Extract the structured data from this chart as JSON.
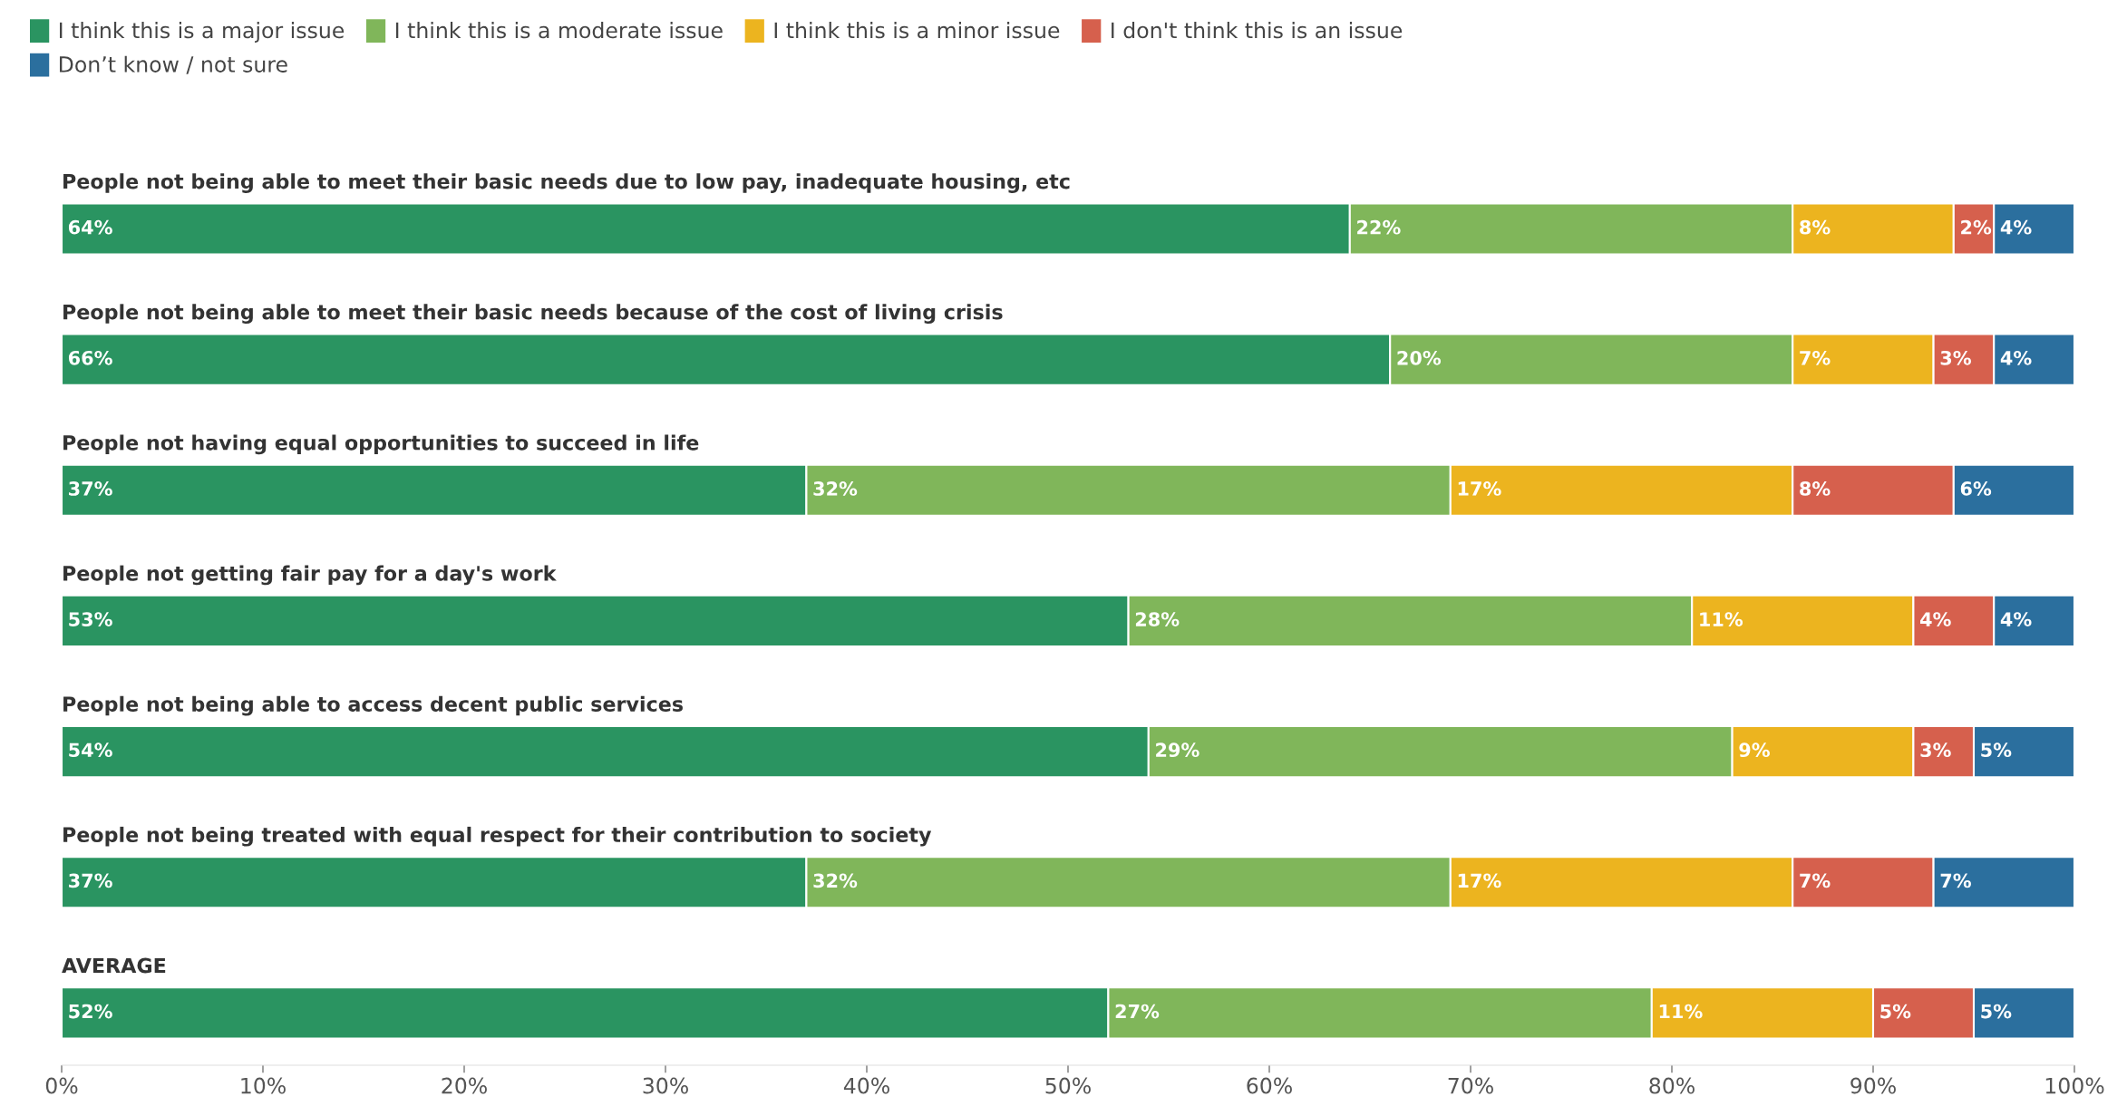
{
  "chart_data": {
    "type": "bar",
    "orientation": "horizontal",
    "stacked": true,
    "legend": "top left",
    "grid": false,
    "categories": [
      "People not being able to meet their basic needs due to low pay, inadequate housing, etc",
      "People not being able to meet their basic needs because of the cost of living crisis",
      "People not having equal opportunities to succeed in life",
      "People not getting fair pay for a day's work",
      "People not being able to access decent public services",
      "People not being treated with equal respect for their contribution to society",
      "AVERAGE"
    ],
    "series": [
      {
        "name": "I think this is a major issue",
        "color": "#2a9461",
        "values": [
          64,
          66,
          37,
          53,
          54,
          37,
          52
        ],
        "value_labels": [
          "64%",
          "66%",
          "37%",
          "53%",
          "54%",
          "37%",
          "52%"
        ]
      },
      {
        "name": "I think this is a moderate issue",
        "color": "#80b65a",
        "values": [
          22,
          20,
          32,
          28,
          29,
          32,
          27
        ],
        "value_labels": [
          "22%",
          "20%",
          "32%",
          "28%",
          "29%",
          "32%",
          "27%"
        ]
      },
      {
        "name": "I think this is a minor issue",
        "color": "#ecb41f",
        "values": [
          8,
          7,
          17,
          11,
          9,
          17,
          11
        ],
        "value_labels": [
          "8%",
          "7%",
          "17%",
          "11%",
          "9%",
          "17%",
          "11%"
        ]
      },
      {
        "name": "I don't think this is an issue",
        "color": "#d6604d",
        "values": [
          2,
          3,
          8,
          4,
          3,
          7,
          5
        ],
        "value_labels": [
          "2%",
          "3%",
          "8%",
          "4%",
          "3%",
          "7%",
          "5%"
        ]
      },
      {
        "name": "Don’t know / not sure",
        "color": "#2b6f9e",
        "values": [
          4,
          4,
          6,
          4,
          5,
          7,
          5
        ],
        "value_labels": [
          "4%",
          "4%",
          "6%",
          "4%",
          "5%",
          "7%",
          "5%"
        ]
      }
    ],
    "xlim": [
      0,
      100
    ],
    "xticks": [
      {
        "value": 0,
        "label": "0%"
      },
      {
        "value": 10,
        "label": "10%"
      },
      {
        "value": 20,
        "label": "20%"
      },
      {
        "value": 30,
        "label": "30%"
      },
      {
        "value": 40,
        "label": "40%"
      },
      {
        "value": 50,
        "label": "50%"
      },
      {
        "value": 60,
        "label": "60%"
      },
      {
        "value": 70,
        "label": "70%"
      },
      {
        "value": 80,
        "label": "80%"
      },
      {
        "value": 90,
        "label": "90%"
      },
      {
        "value": 100,
        "label": "100%"
      }
    ]
  }
}
